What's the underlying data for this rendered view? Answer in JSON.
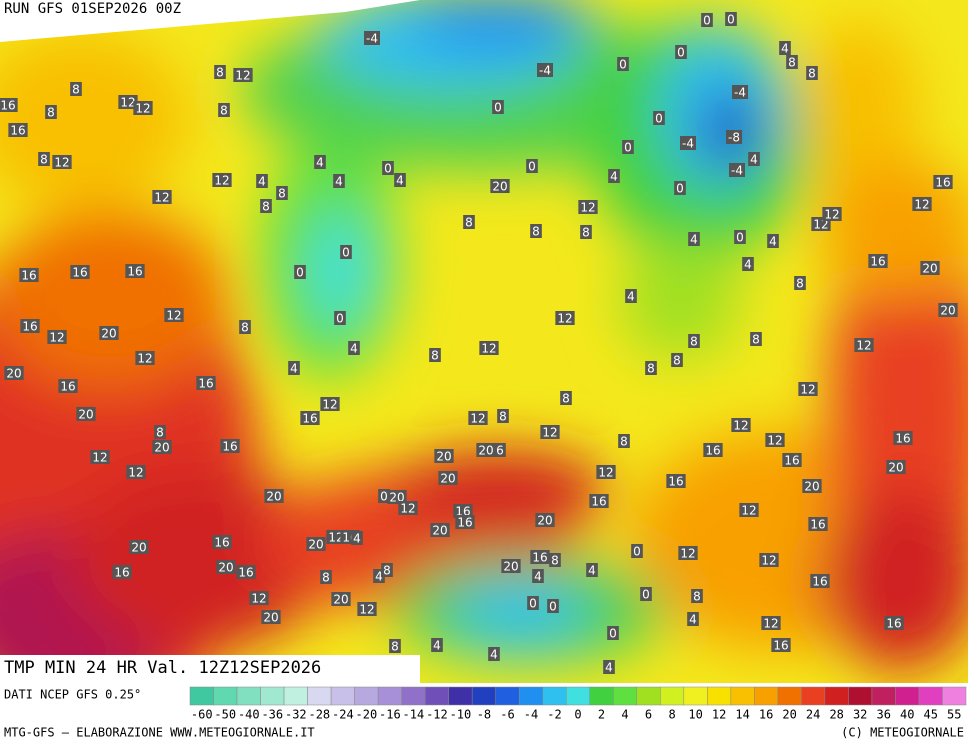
{
  "header": {
    "run": "RUN GFS 01SEP2026 00Z",
    "field": "TMP MIN 24 HR Val. 12Z12SEP2026"
  },
  "footer": {
    "source": "DATI NCEP GFS 0.25°",
    "credit": "MTG-GFS — ELABORAZIONE WWW.METEOGIORNALE.IT",
    "copyright": "(C) METEOGIORNALE"
  },
  "colorbar": {
    "ticks": [
      -60,
      -50,
      -40,
      -36,
      -32,
      -28,
      -24,
      -20,
      -16,
      -14,
      -12,
      -10,
      -8,
      -6,
      -4,
      -2,
      0,
      2,
      4,
      6,
      8,
      10,
      12,
      14,
      16,
      20,
      24,
      28,
      32,
      36,
      40,
      45,
      55
    ],
    "colors": [
      "#40c8a0",
      "#60d8b0",
      "#80e0c0",
      "#a0e8d0",
      "#c0f0e0",
      "#d8d8f0",
      "#c8c0e8",
      "#b8a8e0",
      "#a890d8",
      "#9070c8",
      "#7050b8",
      "#4030a8",
      "#2040c0",
      "#2060e0",
      "#2090f0",
      "#30c0f0",
      "#40e0e0",
      "#40d040",
      "#60e040",
      "#a0e020",
      "#d0f020",
      "#f0f020",
      "#f8e000",
      "#f8c000",
      "#f8a000",
      "#f07000",
      "#e84020",
      "#d02020",
      "#b01030",
      "#c02060",
      "#d02090",
      "#e040c0",
      "#f080e0"
    ]
  },
  "map_labels": [
    -4,
    -4,
    -4,
    -4,
    -8,
    -4,
    12,
    12,
    12,
    16,
    12,
    12,
    12,
    4,
    4,
    0,
    0,
    0,
    0,
    0,
    0,
    0,
    0,
    0,
    0,
    0,
    0,
    0,
    12,
    8,
    8,
    8,
    4,
    4,
    4,
    12,
    12,
    8,
    4,
    4,
    16,
    16,
    16,
    12,
    16,
    12,
    20,
    12,
    20,
    16,
    16,
    20,
    20,
    16,
    12,
    12,
    20,
    16,
    12,
    12,
    8,
    12,
    8,
    16,
    12,
    12,
    12,
    12,
    16,
    20,
    20,
    16,
    12,
    12,
    12,
    16,
    20,
    16,
    20,
    12,
    16,
    12,
    16,
    16,
    12,
    16,
    12,
    0,
    12,
    16,
    16,
    20,
    20,
    20,
    20,
    6,
    20,
    12,
    20,
    16,
    16,
    12,
    16,
    20,
    20,
    16,
    16,
    20,
    16,
    12,
    20,
    20,
    12,
    8,
    20,
    16,
    8,
    4,
    4,
    0,
    0,
    0,
    0,
    4,
    8,
    4,
    4,
    8,
    4,
    8,
    8,
    4,
    8,
    8,
    8,
    8,
    4,
    0,
    4,
    4,
    8,
    8,
    8,
    8,
    8,
    8,
    8,
    8,
    4,
    8,
    4,
    8,
    20,
    8,
    16,
    0,
    4,
    4,
    8
  ]
}
